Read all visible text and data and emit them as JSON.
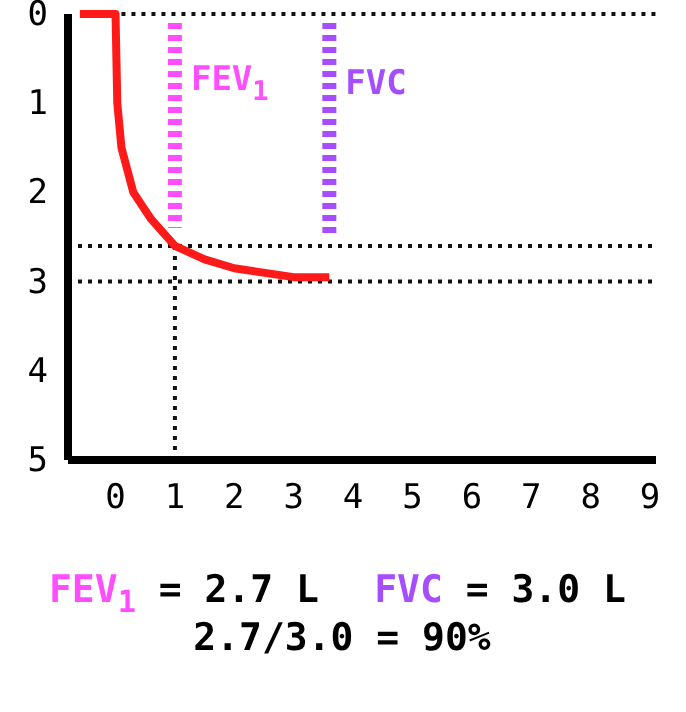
{
  "chart_data": {
    "type": "line",
    "xlim": [
      -0.8,
      9.1
    ],
    "ylim": [
      5,
      0
    ],
    "xticks": [
      0,
      1,
      2,
      3,
      4,
      5,
      6,
      7,
      8,
      9
    ],
    "yticks": [
      0,
      1,
      2,
      3,
      4,
      5
    ],
    "grid": false,
    "legend": false,
    "series": [
      {
        "color": "#111111",
        "x": [
          0.1,
          9.1
        ],
        "values": [
          0,
          0
        ],
        "line_style": "dotted"
      },
      {
        "color": "#111111",
        "x": [
          1,
          1
        ],
        "values": [
          2.6,
          5
        ],
        "line_style": "dotted"
      },
      {
        "color": "#ff1a1a",
        "x": [
          -0.6,
          0,
          0.03,
          0.1,
          0.3,
          0.6,
          1,
          1.5,
          2,
          3,
          3.6
        ],
        "values": [
          0,
          0,
          1,
          1.5,
          2,
          2.3,
          2.6,
          2.75,
          2.85,
          2.95,
          2.95
        ],
        "line_style": "solid"
      },
      {
        "name": "FEV$_{1}$",
        "color": "#ff4dff",
        "x": [
          1,
          1
        ],
        "values": [
          0.1,
          2.4
        ],
        "line_style": "dashed"
      },
      {
        "name": "FVC",
        "color": "#a64dff",
        "x": [
          3.6,
          3.6
        ],
        "values": [
          0.1,
          2.5
        ],
        "line_style": "dashed"
      }
    ],
    "ref_lines": [
      {
        "axis": "y",
        "value": 2.6,
        "color": "#111111",
        "line_style": "dotted"
      },
      {
        "axis": "y",
        "value": 3,
        "color": "#111111",
        "line_style": "dotted"
      }
    ],
    "annotations": [
      "FEV$_{1}$ = 2.7 L",
      "FVC = 3.0 L",
      "2.7/3.0 = 90%"
    ]
  }
}
